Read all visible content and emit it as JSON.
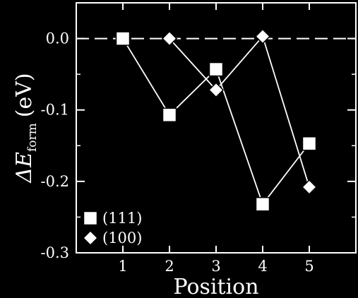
{
  "chart_data": {
    "type": "line",
    "xlabel": "Position",
    "ylabel": {
      "main": "ΔE",
      "subscript": "form",
      "unit": "(eV)"
    },
    "xlim": [
      0,
      6
    ],
    "ylim": [
      -0.3,
      0.05
    ],
    "x_ticks": [
      1,
      2,
      3,
      4,
      5
    ],
    "x_tick_labels": [
      "1",
      "2",
      "3",
      "4",
      "5"
    ],
    "y_ticks": [
      0.0,
      -0.1,
      -0.2,
      -0.3
    ],
    "y_tick_labels": [
      "0.0",
      "-0.1",
      "-0.2",
      "-0.3"
    ],
    "reference_line": {
      "y": 0.0,
      "style": "dashed"
    },
    "grid": false,
    "legend_position": "bottom-left",
    "series": [
      {
        "name": "(111)",
        "marker": "square",
        "x": [
          1,
          2,
          3,
          4,
          5
        ],
        "y": [
          0.0,
          -0.107,
          -0.043,
          -0.232,
          -0.147
        ]
      },
      {
        "name": "(100)",
        "marker": "diamond",
        "x": [
          2,
          3,
          4,
          5
        ],
        "y": [
          0.0,
          -0.072,
          0.003,
          -0.208
        ]
      }
    ],
    "colors": {
      "background": "#000000",
      "foreground": "#ffffff"
    }
  }
}
